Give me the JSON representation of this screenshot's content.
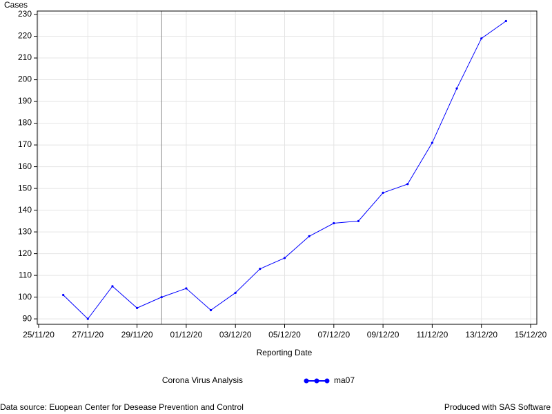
{
  "chart_data": {
    "type": "line",
    "y_label": "Cases",
    "x_label": "Reporting Date",
    "legend_title": "Corona Virus Analysis",
    "x": [
      "26/11/20",
      "27/11/20",
      "28/11/20",
      "29/11/20",
      "30/11/20",
      "01/12/20",
      "02/12/20",
      "03/12/20",
      "04/12/20",
      "05/12/20",
      "06/12/20",
      "07/12/20",
      "08/12/20",
      "09/12/20",
      "10/12/20",
      "11/12/20",
      "12/12/20",
      "13/12/20",
      "14/12/20"
    ],
    "series": [
      {
        "name": "ma07",
        "color": "#0000ff",
        "values": [
          101,
          90,
          105,
          95,
          100,
          104,
          94,
          102,
          113,
          118,
          128,
          134,
          135,
          148,
          152,
          171,
          196,
          219,
          227
        ]
      }
    ],
    "xlim": [
      "25/11/20",
      "15/12/20"
    ],
    "xticks": [
      "25/11/20",
      "27/11/20",
      "29/11/20",
      "01/12/20",
      "03/12/20",
      "05/12/20",
      "07/12/20",
      "09/12/20",
      "11/12/20",
      "13/12/20",
      "15/12/20"
    ],
    "ylim": [
      87.5,
      231.6
    ],
    "yticks": [
      90,
      100,
      110,
      120,
      130,
      140,
      150,
      160,
      170,
      180,
      190,
      200,
      210,
      220,
      230
    ],
    "refline": "30/11/20",
    "grid": true,
    "footnote_left": "Data source: Euopean Center for Desease Prevention and Control",
    "footnote_right": "Produced with SAS Software"
  }
}
